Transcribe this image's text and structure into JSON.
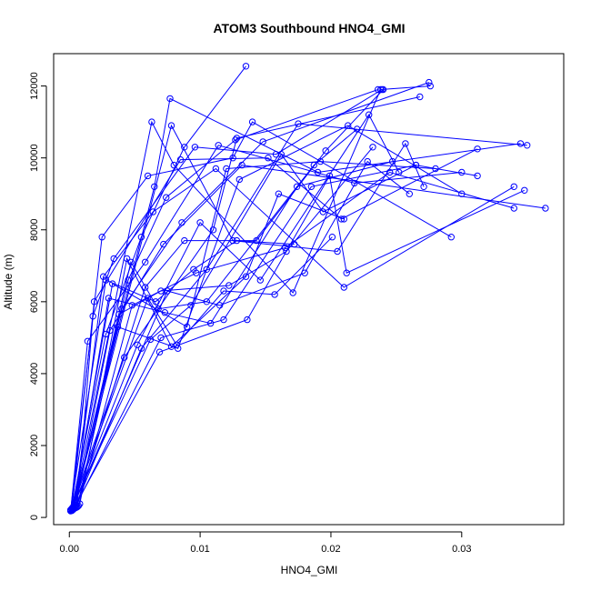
{
  "chart_data": {
    "type": "line",
    "title": "ATOM3 Southbound HNO4_GMI",
    "xlabel": "HNO4_GMI",
    "ylabel": "Altitude (m)",
    "xlim": [
      -0.0012,
      0.0378
    ],
    "ylim": [
      -200,
      12900
    ],
    "x_ticks": [
      0.0,
      0.01,
      0.02,
      0.03
    ],
    "x_tick_labels": [
      "0.00",
      "0.01",
      "0.02",
      "0.03"
    ],
    "y_ticks": [
      0,
      2000,
      4000,
      6000,
      8000,
      10000,
      12000
    ],
    "y_tick_labels": [
      "0",
      "2000",
      "4000",
      "6000",
      "8000",
      "10000",
      "12000"
    ],
    "grid": false,
    "markers": "open-circle",
    "series_color": "#0000ff",
    "series": [
      {
        "x": [
          0.0002,
          0.0028,
          0.0055,
          0.0088,
          0.0135
        ],
        "y": [
          250,
          5100,
          7800,
          10300,
          12550
        ]
      },
      {
        "x": [
          0.0003,
          0.004,
          0.0086,
          0.0148,
          0.0275
        ],
        "y": [
          300,
          5800,
          8200,
          10450,
          12100
        ]
      },
      {
        "x": [
          0.0001,
          0.0025,
          0.006,
          0.0125,
          0.014,
          0.0292
        ],
        "y": [
          200,
          7800,
          9500,
          10000,
          11000,
          7800
        ]
      },
      {
        "x": [
          0.0005,
          0.0031,
          0.0072,
          0.0132,
          0.0364
        ],
        "y": [
          350,
          5200,
          7600,
          9800,
          8600
        ]
      },
      {
        "x": [
          0.0004,
          0.0026,
          0.0064,
          0.0112,
          0.021,
          0.034
        ],
        "y": [
          280,
          6700,
          8500,
          9700,
          6400,
          9200
        ]
      },
      {
        "x": [
          0.0003,
          0.0045,
          0.0074,
          0.0127,
          0.0236
        ],
        "y": [
          230,
          6600,
          8900,
          10500,
          11900
        ]
      },
      {
        "x": [
          0.0002,
          0.0065,
          0.0077,
          0.019,
          0.0345
        ],
        "y": [
          220,
          9200,
          11650,
          9600,
          10400
        ]
      },
      {
        "x": [
          0.0006,
          0.0018,
          0.0034,
          0.0096,
          0.0158,
          0.0239
        ],
        "y": [
          310,
          5600,
          7200,
          10300,
          10100,
          11900
        ]
      },
      {
        "x": [
          0.0001,
          0.0042,
          0.011,
          0.0128,
          0.0268
        ],
        "y": [
          210,
          4450,
          8000,
          10550,
          11700
        ]
      },
      {
        "x": [
          0.0004,
          0.0055,
          0.0105,
          0.0175,
          0.035
        ],
        "y": [
          260,
          4700,
          6900,
          10950,
          10350
        ]
      },
      {
        "x": [
          0.0002,
          0.0019,
          0.0085,
          0.0152,
          0.0208,
          0.0312
        ],
        "y": [
          240,
          6000,
          9950,
          10000,
          8300,
          10250
        ]
      },
      {
        "x": [
          0.0003,
          0.0063,
          0.008,
          0.0171,
          0.0238,
          0.0276
        ],
        "y": [
          270,
          11000,
          9800,
          6250,
          11900,
          12000
        ]
      },
      {
        "x": [
          0.0007,
          0.0048,
          0.0097,
          0.0165,
          0.0245,
          0.034
        ],
        "y": [
          320,
          5900,
          6800,
          7500,
          9600,
          8600
        ]
      },
      {
        "x": [
          0.0002,
          0.0033,
          0.009,
          0.012,
          0.0192,
          0.028
        ],
        "y": [
          190,
          6500,
          5300,
          9700,
          9900,
          9700
        ]
      },
      {
        "x": [
          0.0005,
          0.007,
          0.0118,
          0.0185,
          0.0265,
          0.0312
        ],
        "y": [
          330,
          5000,
          5500,
          9200,
          9800,
          9500
        ]
      },
      {
        "x": [
          0.0001,
          0.0014,
          0.0058,
          0.0114,
          0.0218,
          0.03
        ],
        "y": [
          180,
          4900,
          7100,
          10350,
          9300,
          9600
        ]
      },
      {
        "x": [
          0.0003,
          0.0078,
          0.0125,
          0.0205,
          0.0257,
          0.0271
        ],
        "y": [
          250,
          10900,
          7700,
          7400,
          10400,
          9200
        ]
      },
      {
        "x": [
          0.0004,
          0.0069,
          0.0136,
          0.0199,
          0.0212,
          0.0348
        ],
        "y": [
          300,
          4600,
          5500,
          9500,
          6800,
          9100
        ]
      },
      {
        "x": [
          0.0002,
          0.0052,
          0.01,
          0.0146,
          0.0229,
          0.0252
        ],
        "y": [
          210,
          4800,
          8200,
          6600,
          11200,
          9600
        ]
      },
      {
        "x": [
          0.0006,
          0.0037,
          0.0083,
          0.013,
          0.0213,
          0.03
        ],
        "y": [
          290,
          5300,
          4700,
          9400,
          10900,
          9000
        ]
      },
      {
        "x": [
          0.0001,
          0.0062,
          0.0093,
          0.0162,
          0.0194,
          0.0265
        ],
        "y": [
          200,
          4950,
          5900,
          10100,
          8500,
          9800
        ]
      },
      {
        "x": [
          0.0003,
          0.003,
          0.0073,
          0.0108,
          0.0174,
          0.0247
        ],
        "y": [
          240,
          6100,
          5700,
          5400,
          9200,
          9900
        ]
      },
      {
        "x": [
          0.0008,
          0.0044,
          0.0078,
          0.0135,
          0.016,
          0.021
        ],
        "y": [
          380,
          7200,
          4750,
          6700,
          9000,
          8300
        ]
      },
      {
        "x": [
          0.0002,
          0.0075,
          0.0115,
          0.018,
          0.0228,
          0.026
        ],
        "y": [
          230,
          6300,
          5900,
          6800,
          9900,
          9000
        ]
      },
      {
        "x": [
          0.0005,
          0.0058,
          0.0088,
          0.0143,
          0.0196,
          0.024
        ],
        "y": [
          270,
          6400,
          7700,
          7700,
          10200,
          11900
        ]
      },
      {
        "x": [
          0.0001,
          0.0028,
          0.0066,
          0.0095,
          0.0128,
          0.0172
        ],
        "y": [
          190,
          6600,
          6000,
          6900,
          7700,
          7600
        ]
      },
      {
        "x": [
          0.0004,
          0.0047,
          0.0068,
          0.0105,
          0.0187,
          0.022
        ],
        "y": [
          310,
          7100,
          5800,
          6000,
          9800,
          10800
        ]
      },
      {
        "x": [
          0.0002,
          0.006,
          0.0082,
          0.0118,
          0.0157,
          0.0201
        ],
        "y": [
          250,
          6100,
          4800,
          6300,
          6200,
          7800
        ]
      },
      {
        "x": [
          0.0003,
          0.0038,
          0.007,
          0.0122,
          0.0166,
          0.0232
        ],
        "y": [
          220,
          5650,
          6300,
          6450,
          7400,
          10300
        ]
      }
    ]
  }
}
